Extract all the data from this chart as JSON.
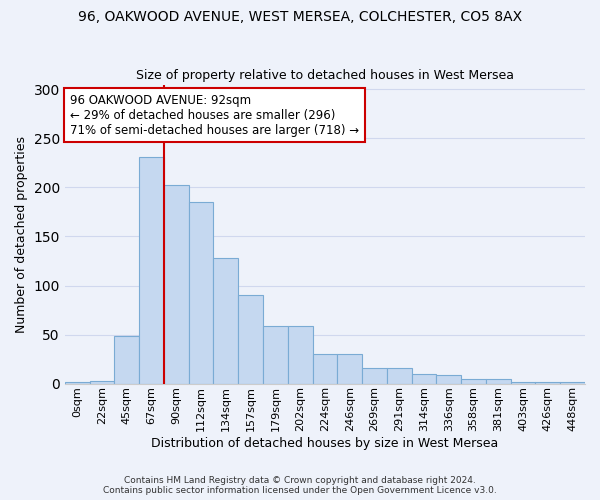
{
  "title_line1": "96, OAKWOOD AVENUE, WEST MERSEA, COLCHESTER, CO5 8AX",
  "title_line2": "Size of property relative to detached houses in West Mersea",
  "xlabel": "Distribution of detached houses by size in West Mersea",
  "ylabel": "Number of detached properties",
  "footer_line1": "Contains HM Land Registry data © Crown copyright and database right 2024.",
  "footer_line2": "Contains public sector information licensed under the Open Government Licence v3.0.",
  "bar_labels": [
    "0sqm",
    "22sqm",
    "45sqm",
    "67sqm",
    "90sqm",
    "112sqm",
    "134sqm",
    "157sqm",
    "179sqm",
    "202sqm",
    "224sqm",
    "246sqm",
    "269sqm",
    "291sqm",
    "314sqm",
    "336sqm",
    "358sqm",
    "381sqm",
    "403sqm",
    "426sqm",
    "448sqm"
  ],
  "bar_values": [
    2,
    3,
    48,
    231,
    203,
    185,
    128,
    90,
    59,
    59,
    30,
    30,
    16,
    16,
    10,
    9,
    5,
    5,
    2,
    2,
    2
  ],
  "bar_color": "#c5d8f0",
  "bar_edge_color": "#7aabd4",
  "bg_color": "#eef2fa",
  "grid_color": "#d0d8ee",
  "property_label": "96 OAKWOOD AVENUE: 92sqm",
  "annotation_line1": "← 29% of detached houses are smaller (296)",
  "annotation_line2": "71% of semi-detached houses are larger (718) →",
  "vline_color": "#cc0000",
  "annotation_box_color": "#ffffff",
  "annotation_box_edge": "#cc0000",
  "ylim": [
    0,
    305
  ],
  "yticks": [
    0,
    50,
    100,
    150,
    200,
    250,
    300
  ],
  "vline_pos": 3.5
}
